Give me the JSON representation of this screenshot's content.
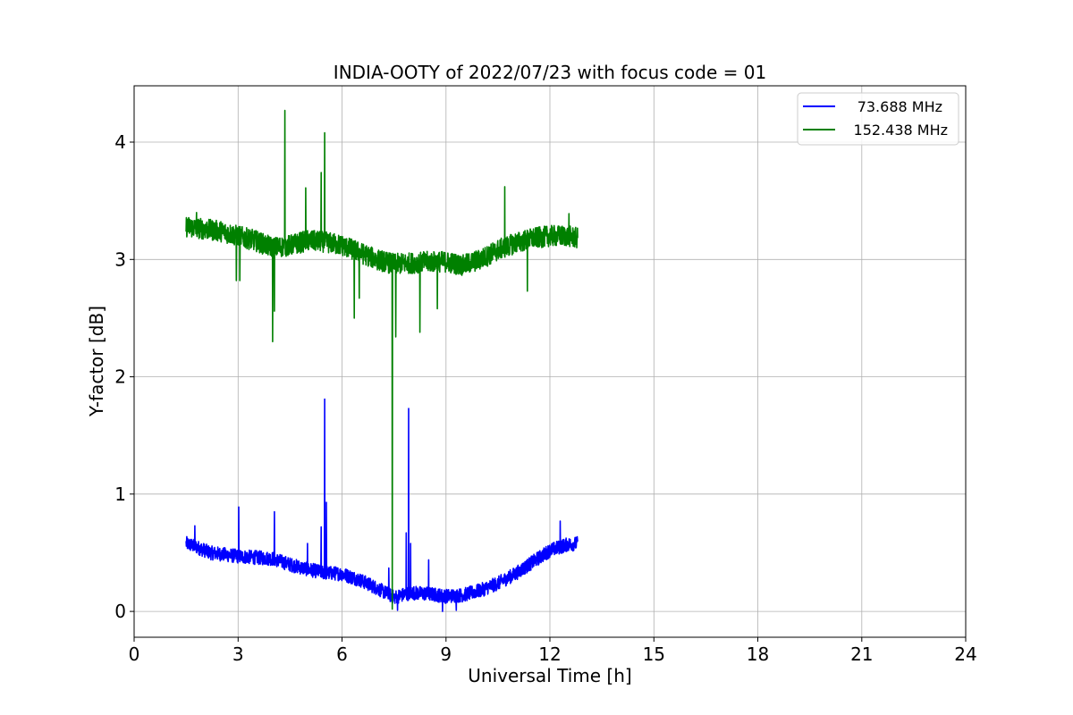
{
  "chart_data": {
    "type": "line",
    "title": "INDIA-OOTY of 2022/07/23 with focus code = 01",
    "xlabel": "Universal Time [h]",
    "ylabel": "Y-factor [dB]",
    "xlim": [
      0,
      24
    ],
    "ylim": [
      -0.22,
      4.48
    ],
    "xticks": [
      0,
      3,
      6,
      9,
      12,
      15,
      18,
      21,
      24
    ],
    "yticks": [
      0,
      1,
      2,
      3,
      4
    ],
    "grid": true,
    "legend_position": "top-right",
    "series": [
      {
        "name": "73.688 MHz",
        "color": "#0000ff",
        "noise": 0.06,
        "baseline": [
          [
            1.5,
            0.58
          ],
          [
            1.8,
            0.55
          ],
          [
            2.2,
            0.5
          ],
          [
            3,
            0.47
          ],
          [
            3.5,
            0.46
          ],
          [
            4,
            0.45
          ],
          [
            4.5,
            0.4
          ],
          [
            5,
            0.36
          ],
          [
            5.5,
            0.33
          ],
          [
            6,
            0.32
          ],
          [
            6.5,
            0.27
          ],
          [
            7,
            0.2
          ],
          [
            7.5,
            0.12
          ],
          [
            8,
            0.16
          ],
          [
            8.5,
            0.15
          ],
          [
            9,
            0.13
          ],
          [
            9.5,
            0.14
          ],
          [
            10,
            0.18
          ],
          [
            10.5,
            0.24
          ],
          [
            11,
            0.32
          ],
          [
            11.5,
            0.42
          ],
          [
            12,
            0.52
          ],
          [
            12.5,
            0.57
          ],
          [
            12.8,
            0.58
          ]
        ],
        "spikes": [
          [
            1.75,
            0.73
          ],
          [
            3.02,
            0.89
          ],
          [
            4.05,
            0.85
          ],
          [
            5.0,
            0.58
          ],
          [
            5.4,
            0.72
          ],
          [
            5.5,
            1.81
          ],
          [
            5.55,
            0.93
          ],
          [
            7.35,
            0.37
          ],
          [
            7.85,
            0.67
          ],
          [
            7.92,
            1.73
          ],
          [
            7.98,
            0.58
          ],
          [
            8.5,
            0.44
          ],
          [
            12.3,
            0.77
          ]
        ],
        "dips": [
          [
            8.9,
            0.0
          ],
          [
            9.3,
            0.01
          ],
          [
            7.6,
            0.01
          ]
        ]
      },
      {
        "name": "152.438 MHz",
        "color": "#008000",
        "noise": 0.09,
        "baseline": [
          [
            1.5,
            3.28
          ],
          [
            2,
            3.26
          ],
          [
            2.5,
            3.24
          ],
          [
            3,
            3.2
          ],
          [
            3.5,
            3.16
          ],
          [
            4,
            3.1
          ],
          [
            4.5,
            3.12
          ],
          [
            5,
            3.16
          ],
          [
            5.5,
            3.15
          ],
          [
            6,
            3.12
          ],
          [
            6.5,
            3.06
          ],
          [
            7,
            3.0
          ],
          [
            7.5,
            2.96
          ],
          [
            8,
            2.97
          ],
          [
            8.5,
            2.98
          ],
          [
            9,
            2.98
          ],
          [
            9.5,
            2.95
          ],
          [
            10,
            3.0
          ],
          [
            10.5,
            3.08
          ],
          [
            11,
            3.14
          ],
          [
            11.5,
            3.18
          ],
          [
            12,
            3.2
          ],
          [
            12.5,
            3.2
          ],
          [
            12.8,
            3.18
          ]
        ],
        "spikes": [
          [
            1.8,
            3.4
          ],
          [
            4.35,
            4.27
          ],
          [
            4.95,
            3.61
          ],
          [
            5.4,
            3.74
          ],
          [
            5.5,
            4.08
          ],
          [
            7.55,
            3.05
          ],
          [
            10.7,
            3.62
          ],
          [
            12.55,
            3.39
          ]
        ],
        "dips": [
          [
            2.95,
            2.82
          ],
          [
            3.05,
            2.82
          ],
          [
            4.0,
            2.3
          ],
          [
            4.05,
            2.56
          ],
          [
            6.35,
            2.5
          ],
          [
            6.5,
            2.67
          ],
          [
            7.45,
            0.02
          ],
          [
            7.55,
            2.34
          ],
          [
            8.25,
            2.38
          ],
          [
            8.75,
            2.58
          ],
          [
            11.35,
            2.73
          ]
        ]
      }
    ]
  }
}
